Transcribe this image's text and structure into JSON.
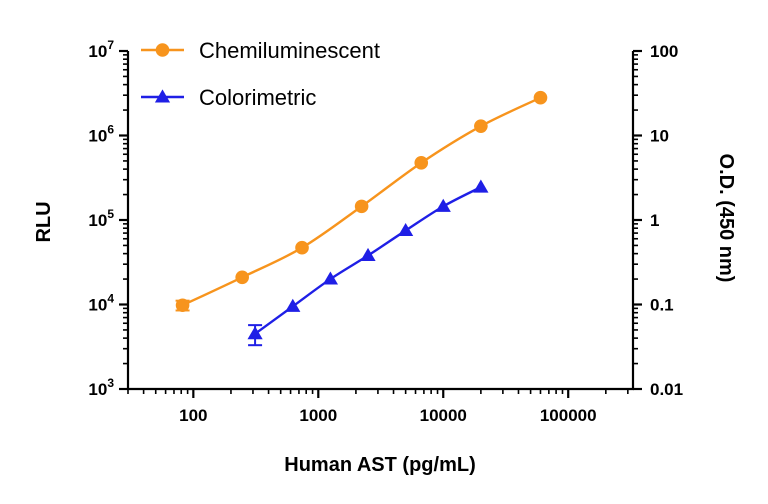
{
  "chart_data": {
    "type": "line",
    "x_scale": "log",
    "xlabel": "Human AST (pg/mL)",
    "x_ticks": [
      {
        "value": 100,
        "label": "100"
      },
      {
        "value": 1000,
        "label": "1000"
      },
      {
        "value": 10000,
        "label": "10000"
      },
      {
        "value": 100000,
        "label": "100000"
      }
    ],
    "xlim": [
      30,
      330000
    ],
    "ylabel_left": "RLU",
    "y_left_scale": "log",
    "y_left_ticks": [
      {
        "value": 1000,
        "base": "10",
        "exp": "3"
      },
      {
        "value": 10000,
        "base": "10",
        "exp": "4"
      },
      {
        "value": 100000,
        "base": "10",
        "exp": "5"
      },
      {
        "value": 1000000,
        "base": "10",
        "exp": "6"
      },
      {
        "value": 10000000,
        "base": "10",
        "exp": "7"
      }
    ],
    "y_left_lim": [
      1000,
      10000000
    ],
    "ylabel_right": "O.D. (450 nm)",
    "y_right_scale": "log",
    "y_right_ticks": [
      {
        "value": 0.01,
        "label": "0.01"
      },
      {
        "value": 0.1,
        "label": "0.1"
      },
      {
        "value": 1,
        "label": "1"
      },
      {
        "value": 10,
        "label": "10"
      },
      {
        "value": 100,
        "label": "100"
      }
    ],
    "y_right_lim": [
      0.01,
      100
    ],
    "legend_position": "top-left",
    "grid": false,
    "series": [
      {
        "name": "Chemiluminescent",
        "axis": "left",
        "color": "#F7941D",
        "marker": "circle",
        "x": [
          82,
          246,
          741,
          2222,
          6667,
          20000,
          60000
        ],
        "y": [
          9800,
          21000,
          47000,
          145000,
          475000,
          1290000,
          2800000
        ],
        "y_err": [
          1300,
          0,
          0,
          0,
          0,
          0,
          0
        ]
      },
      {
        "name": "Colorimetric",
        "axis": "right",
        "color": "#1F1FE6",
        "marker": "triangle",
        "x": [
          312,
          625,
          1250,
          2500,
          5000,
          10000,
          20000
        ],
        "y": [
          0.045,
          0.095,
          0.2,
          0.38,
          0.75,
          1.45,
          2.45
        ],
        "y_err": [
          0.012,
          0,
          0,
          0,
          0,
          0,
          0
        ]
      }
    ]
  }
}
